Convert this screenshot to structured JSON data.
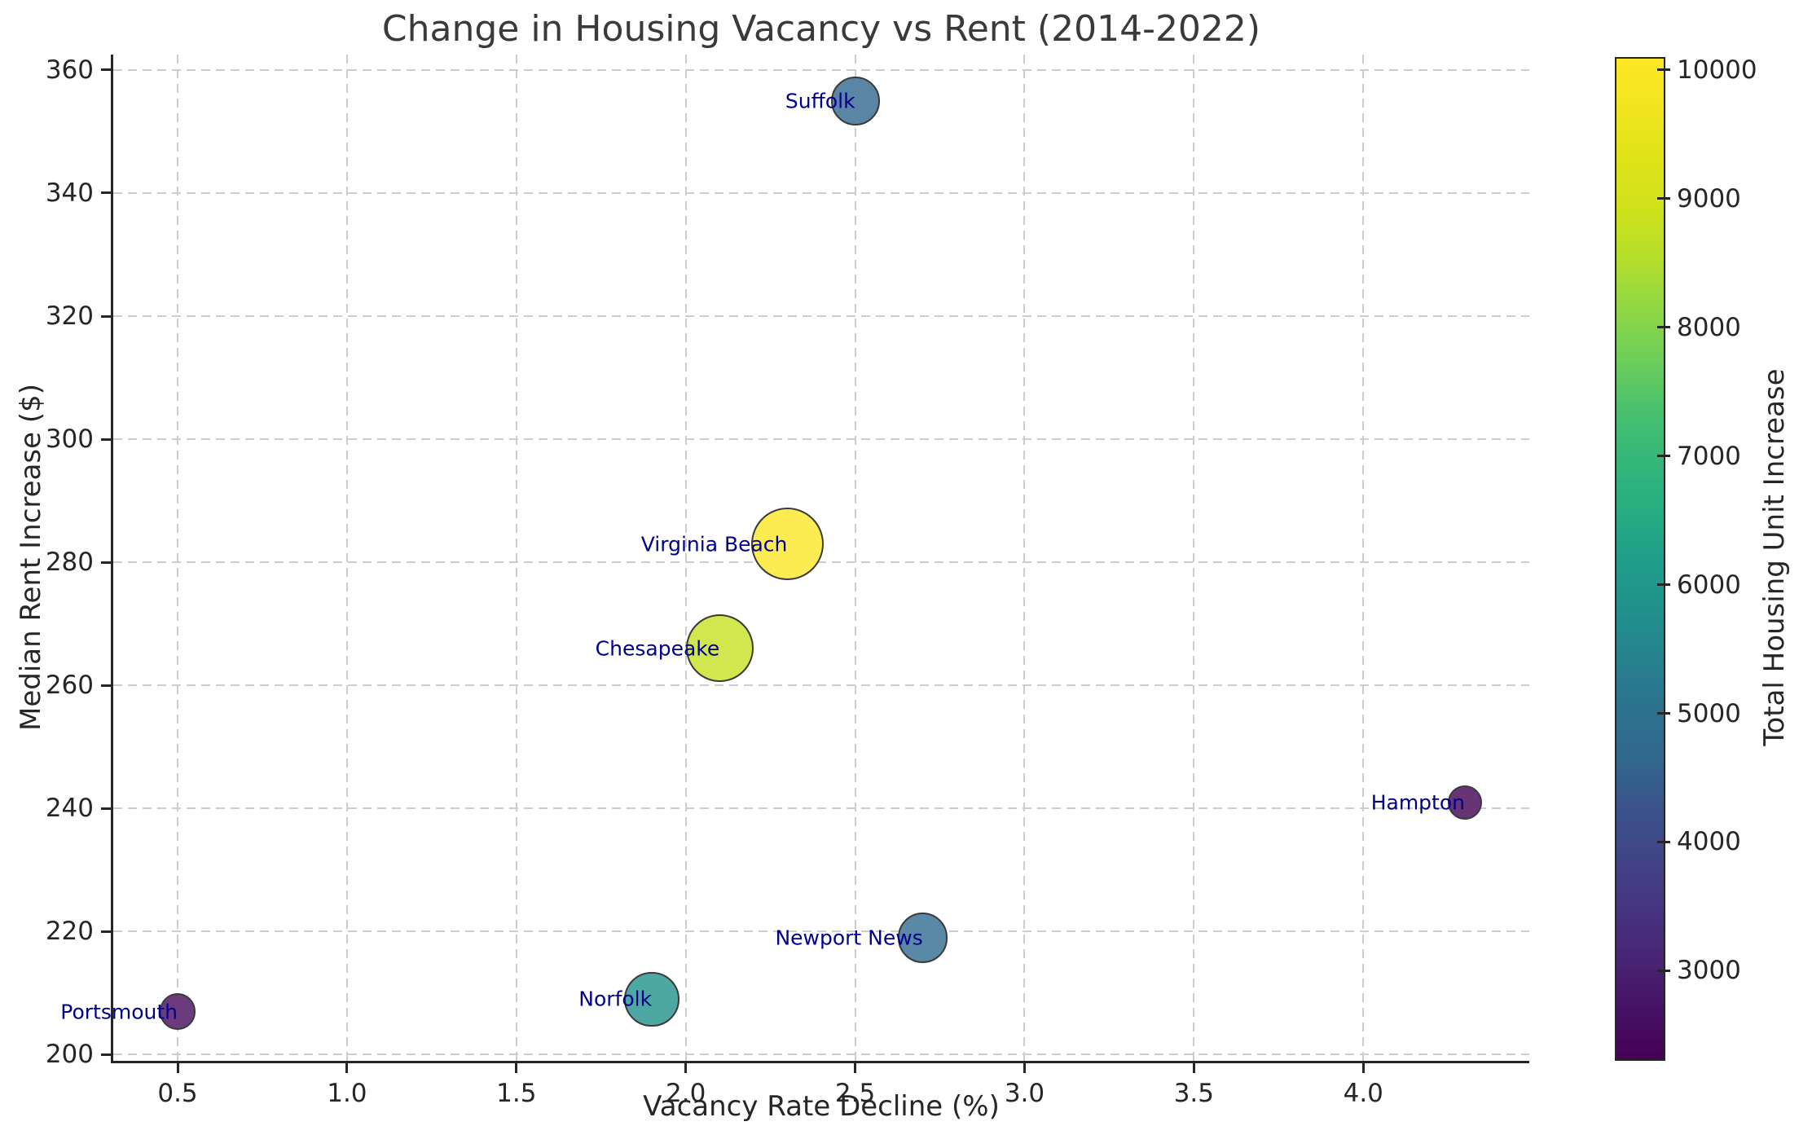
{
  "figure": {
    "background": "#ffffff",
    "title_color": "#3a3a3a",
    "axis_color": "#262626",
    "grid_color": "#cdcdcd",
    "city_label_color": "#00008b",
    "bubble_edge_color": "#3a3a3a",
    "bubble_alpha": 0.8,
    "colormap": "viridis"
  },
  "chart_data": {
    "type": "scatter",
    "title": "Change in Housing Vacancy vs Rent (2014-2022)",
    "xlabel": "Vacancy Rate Decline (%)",
    "ylabel": "Median Rent Increase ($)",
    "colorbar_label": "Total Housing Unit Increase",
    "xlim": [
      0.31,
      4.49
    ],
    "ylim": [
      199,
      362.5
    ],
    "x_ticks": [
      0.5,
      1.0,
      1.5,
      2.0,
      2.5,
      3.0,
      3.5,
      4.0
    ],
    "x_tick_labels": [
      "0.5",
      "1.0",
      "1.5",
      "2.0",
      "2.5",
      "3.0",
      "3.5",
      "4.0"
    ],
    "y_ticks": [
      200,
      220,
      240,
      260,
      280,
      300,
      320,
      340,
      360
    ],
    "y_tick_labels": [
      "200",
      "220",
      "240",
      "260",
      "280",
      "300",
      "320",
      "340",
      "360"
    ],
    "colorbar_ticks": [
      3000,
      4000,
      5000,
      6000,
      7000,
      8000,
      9000,
      10000
    ],
    "colorbar_tick_labels": [
      "3000",
      "4000",
      "5000",
      "6000",
      "7000",
      "8000",
      "9000",
      "10000"
    ],
    "color_range": [
      2300,
      10100
    ],
    "size_encoding": "bubble area proportional to Total Housing Unit Increase",
    "grid": true,
    "legend_position": "colorbar-right",
    "points": [
      {
        "city": "Suffolk",
        "vacancy_decline_pct": 2.5,
        "rent_increase_usd": 355,
        "housing_unit_increase": 4600
      },
      {
        "city": "Virginia Beach",
        "vacancy_decline_pct": 2.3,
        "rent_increase_usd": 283,
        "housing_unit_increase": 10100
      },
      {
        "city": "Chesapeake",
        "vacancy_decline_pct": 2.1,
        "rent_increase_usd": 266,
        "housing_unit_increase": 8800
      },
      {
        "city": "Hampton",
        "vacancy_decline_pct": 4.3,
        "rent_increase_usd": 241,
        "housing_unit_increase": 2300
      },
      {
        "city": "Newport News",
        "vacancy_decline_pct": 2.7,
        "rent_increase_usd": 219,
        "housing_unit_increase": 4800
      },
      {
        "city": "Norfolk",
        "vacancy_decline_pct": 1.9,
        "rent_increase_usd": 209,
        "housing_unit_increase": 5800
      },
      {
        "city": "Portsmouth",
        "vacancy_decline_pct": 0.5,
        "rent_increase_usd": 207,
        "housing_unit_increase": 2500
      }
    ]
  }
}
